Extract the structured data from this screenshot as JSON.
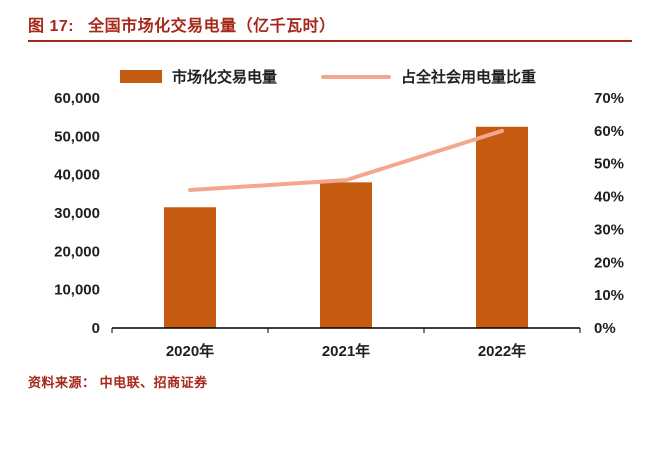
{
  "header": {
    "figure_label": "图 17:",
    "title": "全国市场化交易电量（亿千瓦时）",
    "accent_color": "#A5281B"
  },
  "legend": [
    {
      "label": "市场化交易电量",
      "type": "bar",
      "color": "#C55A11"
    },
    {
      "label": "占全社会用电量比重",
      "type": "line",
      "color": "#F5A78E"
    }
  ],
  "chart_data": {
    "type": "bar",
    "subtype": "combo-bar-line",
    "title": "全国市场化交易电量（亿千瓦时）",
    "categories": [
      "2020年",
      "2021年",
      "2022年"
    ],
    "series": [
      {
        "name": "市场化交易电量",
        "type": "bar",
        "axis": "left",
        "values": [
          31500,
          38000,
          52500
        ],
        "color": "#C55A11"
      },
      {
        "name": "占全社会用电量比重",
        "type": "line",
        "axis": "right",
        "values": [
          42,
          45,
          60
        ],
        "color": "#F5A78E"
      }
    ],
    "left_axis": {
      "min": 0,
      "max": 60000,
      "step": 10000,
      "tick_labels": [
        "0",
        "10,000",
        "20,000",
        "30,000",
        "40,000",
        "50,000",
        "60,000"
      ]
    },
    "right_axis": {
      "min": 0,
      "max": 70,
      "step": 10,
      "tick_labels": [
        "0%",
        "10%",
        "20%",
        "30%",
        "40%",
        "50%",
        "60%",
        "70%"
      ]
    },
    "grid": false,
    "legend_position": "top"
  },
  "footer": {
    "source": "资料来源： 中电联、招商证券"
  }
}
